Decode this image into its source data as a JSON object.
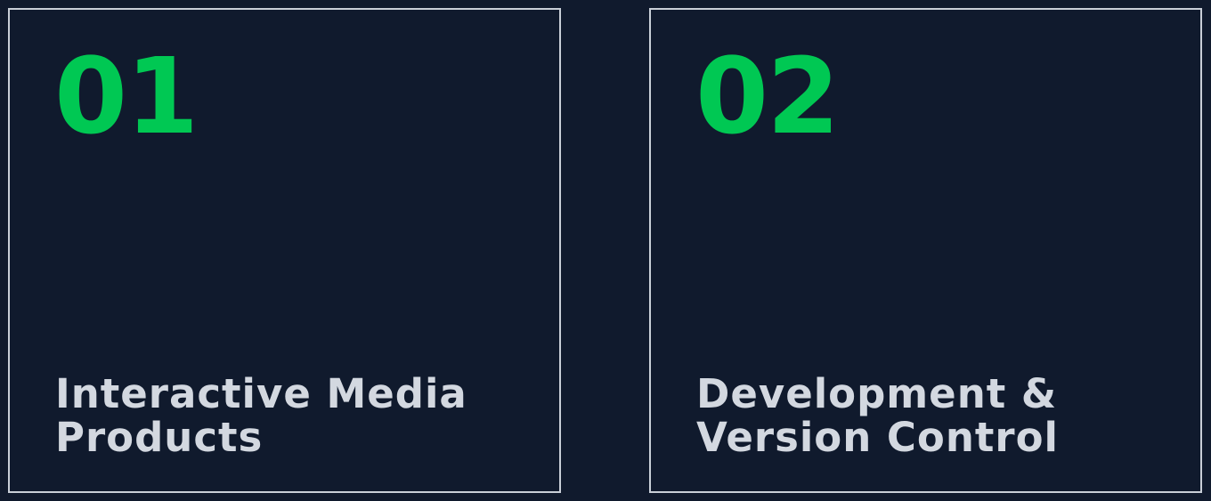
{
  "colors": {
    "background": "#101a2d",
    "border": "#c9cfd8",
    "accent": "#00c853",
    "title_text": "#d3d8e0"
  },
  "cards": [
    {
      "number": "01",
      "title_lines": [
        "Interactive Media",
        "Products"
      ]
    },
    {
      "number": "02",
      "title_lines": [
        "Development &",
        "Version Control"
      ]
    }
  ]
}
